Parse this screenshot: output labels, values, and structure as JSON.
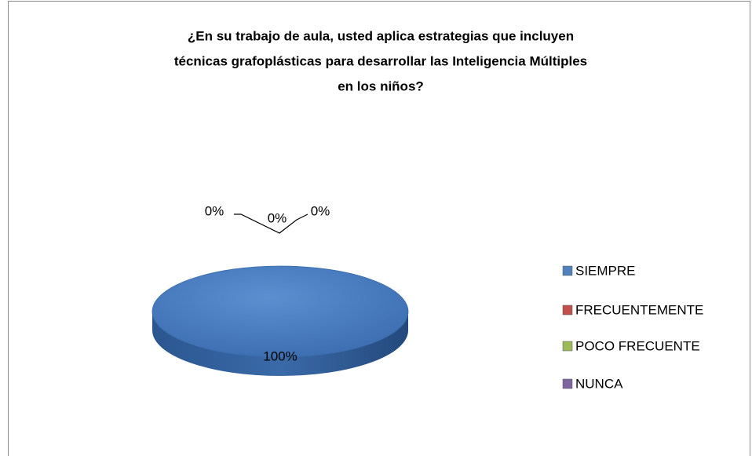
{
  "chart_data": {
    "type": "pie",
    "title": [
      "¿En su trabajo de aula, usted aplica estrategias que incluyen",
      "técnicas grafoplásticas  para desarrollar las  Inteligencia  Múltiples",
      "en los niños?"
    ],
    "categories": [
      "SIEMPRE",
      "FRECUENTEMENTE",
      "POCO FRECUENTE",
      "NUNCA"
    ],
    "values": [
      100,
      0,
      0,
      0
    ],
    "value_labels": [
      "100%",
      "0%",
      "0%",
      "0%"
    ],
    "colors": [
      "#4f81bd",
      "#c0504d",
      "#9bbb59",
      "#8064a2"
    ],
    "legend": "right"
  }
}
